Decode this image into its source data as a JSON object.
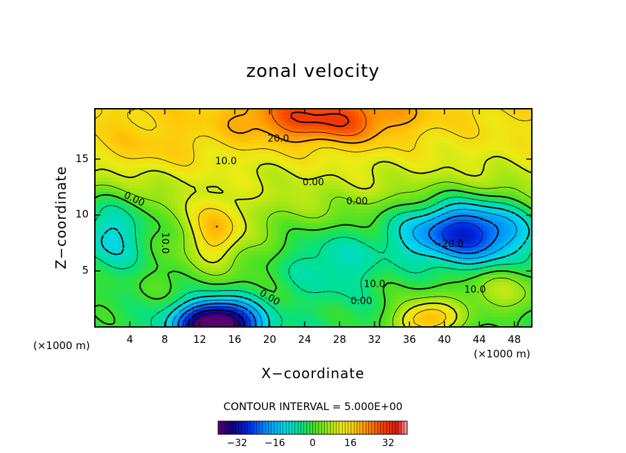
{
  "chart_data": {
    "type": "heatmap",
    "title": "zonal velocity",
    "xlabel": "X−coordinate",
    "ylabel": "Z−coordinate",
    "x_unit_left": "(×1000 m)",
    "x_unit_right": "(×1000 m)",
    "xlim": [
      0,
      50
    ],
    "ylim": [
      0,
      19.5
    ],
    "x_ticks": [
      "4",
      "8",
      "12",
      "16",
      "20",
      "24",
      "28",
      "32",
      "36",
      "40",
      "44",
      "48"
    ],
    "y_ticks": [
      "5",
      "10",
      "15"
    ],
    "contour_interval_text": "CONTOUR INTERVAL = 5.000E+00",
    "colorbar": {
      "range": [
        -40,
        40
      ],
      "ticks": [
        "−32",
        "−16",
        "0",
        "16",
        "32"
      ]
    },
    "contour_labels": [
      "20.0",
      "10.0",
      "0.00",
      "0.00",
      "0.00",
      "10.0",
      "−20.0",
      "10.0",
      "0.00",
      "0.00",
      "10.0"
    ],
    "features": [
      {
        "x": 26,
        "z": 18.5,
        "value": 30
      },
      {
        "x": 14,
        "z": 0.5,
        "value": -38
      },
      {
        "x": 42,
        "z": 8.5,
        "value": -24
      },
      {
        "x": 38,
        "z": 0.8,
        "value": 28
      },
      {
        "x": 14,
        "z": 8.5,
        "value": 16
      },
      {
        "x": 6,
        "z": 16,
        "value": 18
      },
      {
        "x": 2,
        "z": 8.5,
        "value": -8
      },
      {
        "x": 26,
        "z": 6,
        "value": -6
      }
    ]
  }
}
